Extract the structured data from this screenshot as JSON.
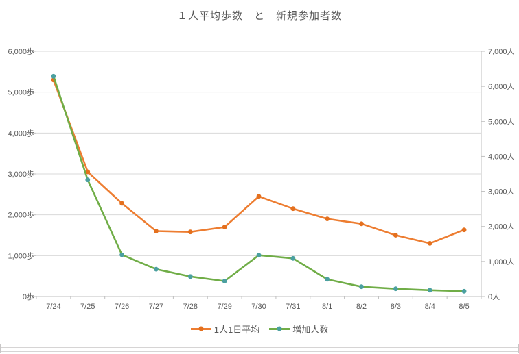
{
  "chart_data": {
    "type": "line",
    "title": "１人平均歩数　と　新規参加者数",
    "categories": [
      "7/24",
      "7/25",
      "7/26",
      "7/27",
      "7/28",
      "7/29",
      "7/30",
      "7/31",
      "8/1",
      "8/2",
      "8/3",
      "8/4",
      "8/5"
    ],
    "series": [
      {
        "name": "1人1日平均",
        "axis": "left",
        "unit": "歩",
        "color": "#ED7D31",
        "marker_color": "#E4701E",
        "values": [
          5300,
          3050,
          2280,
          1600,
          1580,
          1700,
          2450,
          2150,
          1900,
          1780,
          1500,
          1300,
          1630
        ]
      },
      {
        "name": "増加人数",
        "axis": "right",
        "unit": "人",
        "color": "#70AD47",
        "marker_color": "#4BA0A0",
        "values": [
          6290,
          3330,
          1190,
          780,
          570,
          440,
          1180,
          1090,
          490,
          280,
          220,
          180,
          150
        ]
      }
    ],
    "left_axis": {
      "min": 0,
      "max": 6000,
      "step": 1000,
      "tick_labels": [
        "0歩",
        "1,000歩",
        "2,000歩",
        "3,000歩",
        "4,000歩",
        "5,000歩",
        "6,000歩"
      ]
    },
    "right_axis": {
      "min": 0,
      "max": 7000,
      "step": 1000,
      "tick_labels": [
        "0人",
        "1,000人",
        "2,000人",
        "3,000人",
        "4,000人",
        "5,000人",
        "6,000人",
        "7,000人"
      ]
    },
    "grid": true,
    "legend_position": "bottom",
    "colors": {
      "text": "#595959",
      "gridline": "#D9D9D9",
      "axis_line": "#BFBFBF",
      "background": "#FFFFFF"
    }
  }
}
